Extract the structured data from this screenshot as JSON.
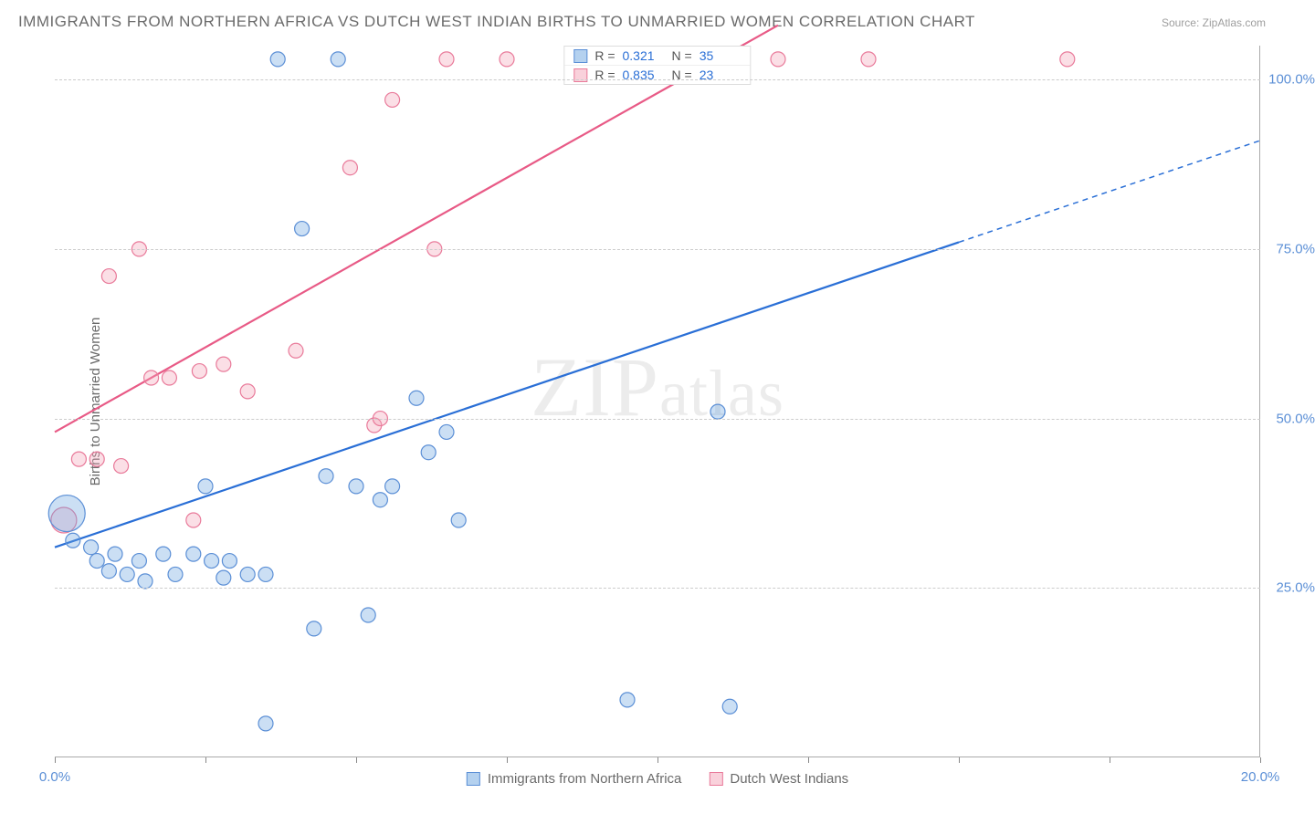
{
  "title": "IMMIGRANTS FROM NORTHERN AFRICA VS DUTCH WEST INDIAN BIRTHS TO UNMARRIED WOMEN CORRELATION CHART",
  "source": "Source: ZipAtlas.com",
  "ylabel": "Births to Unmarried Women",
  "watermark": "ZIPatlas",
  "chart": {
    "type": "scatter",
    "xlim": [
      0,
      20
    ],
    "ylim": [
      0,
      105
    ],
    "x_unit": "%",
    "y_unit": "%",
    "xtick_positions": [
      0,
      2.5,
      5,
      7.5,
      10,
      12.5,
      15,
      17.5,
      20
    ],
    "xtick_labels": {
      "0": "0.0%",
      "20": "20.0%"
    },
    "ytick_positions": [
      25,
      50,
      75,
      100
    ],
    "ytick_labels": [
      "25.0%",
      "50.0%",
      "75.0%",
      "100.0%"
    ],
    "grid_color": "#cccccc",
    "grid_dash": true,
    "background_color": "#ffffff",
    "marker_radius": 8,
    "big_marker_radius": 20,
    "series": {
      "blue": {
        "label": "Immigrants from Northern Africa",
        "color_fill": "#6aa3e0",
        "color_stroke": "#5b8fd6",
        "R": "0.321",
        "N": "35",
        "trend": {
          "x1": 0,
          "y1": 31,
          "x2_solid": 15,
          "y2_solid": 76,
          "x2_dash": 20,
          "y2_dash": 91
        },
        "points": [
          {
            "x": 0.2,
            "y": 36,
            "r": 20
          },
          {
            "x": 0.3,
            "y": 32
          },
          {
            "x": 0.6,
            "y": 31
          },
          {
            "x": 0.7,
            "y": 29
          },
          {
            "x": 0.9,
            "y": 27.5
          },
          {
            "x": 1.0,
            "y": 30
          },
          {
            "x": 1.2,
            "y": 27
          },
          {
            "x": 1.4,
            "y": 29
          },
          {
            "x": 1.5,
            "y": 26
          },
          {
            "x": 1.8,
            "y": 30
          },
          {
            "x": 2.0,
            "y": 27
          },
          {
            "x": 2.3,
            "y": 30
          },
          {
            "x": 2.5,
            "y": 40
          },
          {
            "x": 2.6,
            "y": 29
          },
          {
            "x": 2.8,
            "y": 26.5
          },
          {
            "x": 2.9,
            "y": 29
          },
          {
            "x": 3.2,
            "y": 27
          },
          {
            "x": 3.5,
            "y": 27
          },
          {
            "x": 3.5,
            "y": 5
          },
          {
            "x": 3.7,
            "y": 103
          },
          {
            "x": 4.1,
            "y": 78
          },
          {
            "x": 4.3,
            "y": 19
          },
          {
            "x": 4.5,
            "y": 41.5
          },
          {
            "x": 4.7,
            "y": 103
          },
          {
            "x": 5.0,
            "y": 40
          },
          {
            "x": 5.2,
            "y": 21
          },
          {
            "x": 5.4,
            "y": 38
          },
          {
            "x": 5.6,
            "y": 40
          },
          {
            "x": 6.0,
            "y": 53
          },
          {
            "x": 6.2,
            "y": 45
          },
          {
            "x": 6.5,
            "y": 48
          },
          {
            "x": 6.7,
            "y": 35
          },
          {
            "x": 9.5,
            "y": 8.5
          },
          {
            "x": 11.2,
            "y": 7.5
          },
          {
            "x": 11.0,
            "y": 51
          }
        ]
      },
      "pink": {
        "label": "Dutch West Indians",
        "color_fill": "#f4a4b8",
        "color_stroke": "#e97a9a",
        "R": "0.835",
        "N": "23",
        "trend": {
          "x1": 0,
          "y1": 48,
          "x2_solid": 12,
          "y2_solid": 108
        },
        "points": [
          {
            "x": 0.15,
            "y": 35,
            "r": 14
          },
          {
            "x": 0.4,
            "y": 44
          },
          {
            "x": 0.7,
            "y": 44
          },
          {
            "x": 0.9,
            "y": 71
          },
          {
            "x": 1.1,
            "y": 43
          },
          {
            "x": 1.4,
            "y": 75
          },
          {
            "x": 1.6,
            "y": 56
          },
          {
            "x": 1.9,
            "y": 56
          },
          {
            "x": 2.3,
            "y": 35
          },
          {
            "x": 2.4,
            "y": 57
          },
          {
            "x": 2.8,
            "y": 58
          },
          {
            "x": 3.2,
            "y": 54
          },
          {
            "x": 4.0,
            "y": 60
          },
          {
            "x": 4.9,
            "y": 87
          },
          {
            "x": 5.3,
            "y": 49
          },
          {
            "x": 5.4,
            "y": 50
          },
          {
            "x": 5.6,
            "y": 97
          },
          {
            "x": 6.3,
            "y": 75
          },
          {
            "x": 6.5,
            "y": 103
          },
          {
            "x": 7.5,
            "y": 103
          },
          {
            "x": 12.0,
            "y": 103
          },
          {
            "x": 13.5,
            "y": 103
          },
          {
            "x": 16.8,
            "y": 103
          }
        ]
      }
    }
  },
  "legend_top": {
    "rows": [
      {
        "swatch": "blue",
        "r_label": "R =",
        "r_value": "0.321",
        "n_label": "N =",
        "n_value": "35"
      },
      {
        "swatch": "pink",
        "r_label": "R =",
        "r_value": "0.835",
        "n_label": "N =",
        "n_value": "23"
      }
    ]
  },
  "legend_bottom": {
    "items": [
      {
        "swatch": "blue",
        "label": "Immigrants from Northern Africa"
      },
      {
        "swatch": "pink",
        "label": "Dutch West Indians"
      }
    ]
  }
}
